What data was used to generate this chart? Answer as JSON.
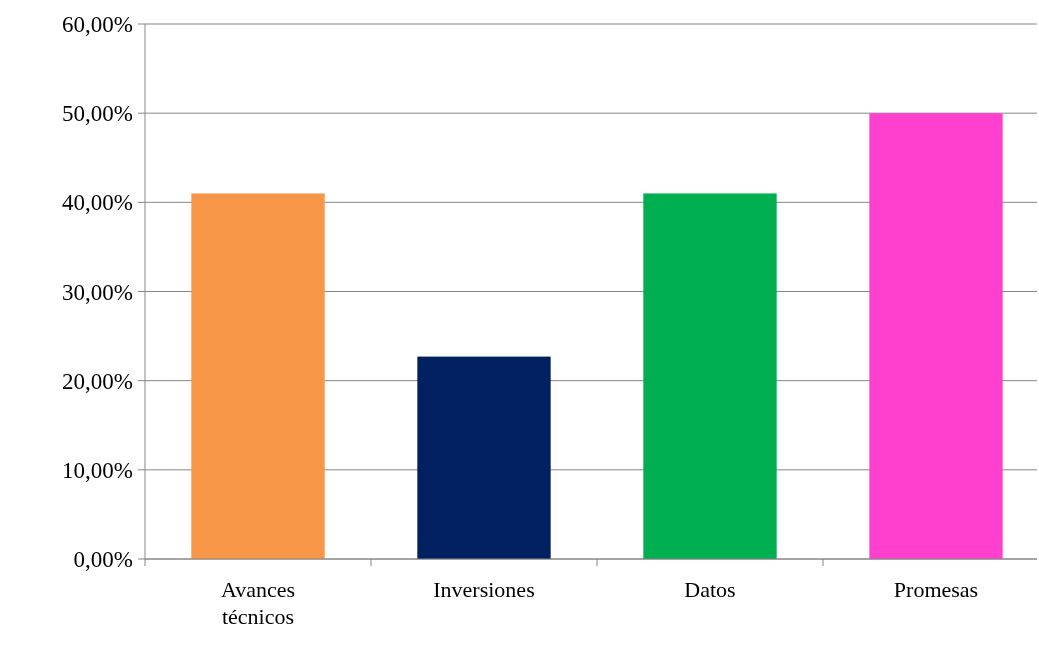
{
  "chart_data": {
    "type": "bar",
    "categories": [
      "Avances técnicos",
      "Inversiones",
      "Datos",
      "Promesas"
    ],
    "values": [
      41,
      22.7,
      41,
      50
    ],
    "colors": [
      "#f79646",
      "#002060",
      "#00b050",
      "#ff40cf"
    ],
    "ylim": [
      0,
      60
    ],
    "yticks": [
      {
        "value": 0,
        "label": "0,00%"
      },
      {
        "value": 10,
        "label": "10,00%"
      },
      {
        "value": 20,
        "label": "20,00%"
      },
      {
        "value": 30,
        "label": "30,00%"
      },
      {
        "value": 40,
        "label": "40,00%"
      },
      {
        "value": 50,
        "label": "50,00%"
      },
      {
        "value": 60,
        "label": "60,00%"
      }
    ],
    "grid": "y"
  }
}
